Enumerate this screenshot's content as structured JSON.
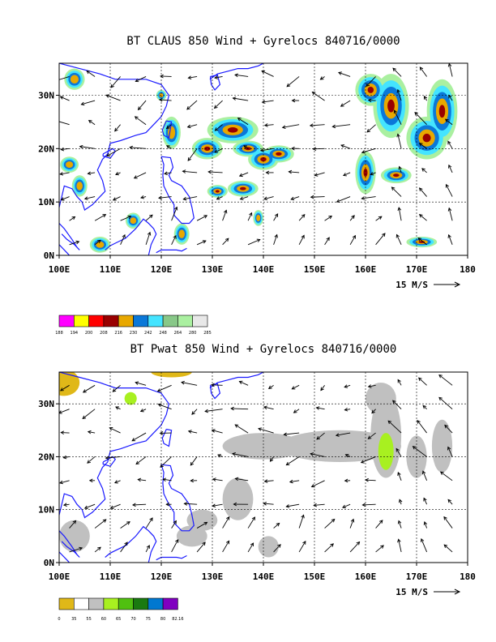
{
  "chart_data": [
    {
      "type": "heatmap",
      "title": "BT CLAUS 850 Wind + Gyrelocs 840716/0000",
      "x_tick_labels": [
        "100E",
        "110E",
        "120E",
        "130E",
        "140E",
        "150E",
        "160E",
        "170E",
        "180"
      ],
      "y_tick_labels": [
        "0N",
        "10N",
        "20N",
        "30N"
      ],
      "x_ticks": [
        100,
        110,
        120,
        130,
        140,
        150,
        160,
        170,
        180
      ],
      "y_ticks": [
        0,
        10,
        20,
        30
      ],
      "xlim": [
        100,
        180
      ],
      "ylim": [
        0,
        36
      ],
      "grid": true,
      "vector_reference_label": "15 M/S",
      "colorbar": {
        "labels": [
          "188",
          "194",
          "200",
          "208",
          "216",
          "230",
          "242",
          "248",
          "264",
          "280",
          "285"
        ],
        "colors": [
          "#ff00ff",
          "#ffff00",
          "#ff0000",
          "#990000",
          "#e8a800",
          "#0b78d8",
          "#44e4ff",
          "#88c888",
          "#aaf0a0",
          "#e8e8e8"
        ]
      },
      "color_scale": "brightness temperature (K)",
      "features": [
        {
          "lon": 134,
          "lat": 23.5,
          "value": 208
        },
        {
          "lon": 137,
          "lat": 20,
          "value": 208
        },
        {
          "lon": 165,
          "lat": 28,
          "value": 200
        },
        {
          "lon": 172,
          "lat": 22,
          "value": 208
        },
        {
          "lon": 175,
          "lat": 27,
          "value": 208
        },
        {
          "lon": 160,
          "lat": 15.5,
          "value": 216
        },
        {
          "lon": 114.5,
          "lat": 6.5,
          "value": 208
        },
        {
          "lon": 124,
          "lat": 4,
          "value": 216
        }
      ]
    },
    {
      "type": "heatmap",
      "title": "BT Pwat 850 Wind + Gyrelocs 840716/0000",
      "x_tick_labels": [
        "100E",
        "110E",
        "120E",
        "130E",
        "140E",
        "150E",
        "160E",
        "170E",
        "180"
      ],
      "y_tick_labels": [
        "0N",
        "10N",
        "20N",
        "30N"
      ],
      "x_ticks": [
        100,
        110,
        120,
        130,
        140,
        150,
        160,
        170,
        180
      ],
      "y_ticks": [
        0,
        10,
        20,
        30
      ],
      "xlim": [
        100,
        180
      ],
      "ylim": [
        0,
        36
      ],
      "grid": true,
      "vector_reference_label": "15 M/S",
      "colorbar": {
        "labels": [
          "0",
          "35",
          "55",
          "60",
          "65",
          "70",
          "75",
          "80",
          "82.16"
        ],
        "colors": [
          "#e0b818",
          "#ffffff",
          "#c0c0c0",
          "#a8f020",
          "#50c010",
          "#1a7a10",
          "#0078d0",
          "#8000c0"
        ]
      },
      "color_scale": "precipitable water (mm)",
      "features": [
        {
          "lon": 162,
          "lat": 22,
          "value": 60
        },
        {
          "lon": 114,
          "lat": 31,
          "value": 60
        },
        {
          "lon": 101,
          "lat": 34,
          "value": 35
        }
      ]
    }
  ]
}
